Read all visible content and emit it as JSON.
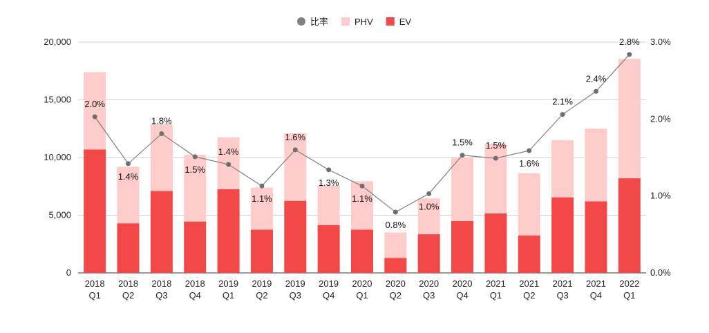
{
  "chart_data": {
    "type": "bar",
    "stacked": true,
    "title": "",
    "categories": [
      [
        "2018",
        "Q1"
      ],
      [
        "2018",
        "Q2"
      ],
      [
        "2018",
        "Q3"
      ],
      [
        "2018",
        "Q4"
      ],
      [
        "2019",
        "Q1"
      ],
      [
        "2019",
        "Q2"
      ],
      [
        "2019",
        "Q3"
      ],
      [
        "2019",
        "Q4"
      ],
      [
        "2020",
        "Q1"
      ],
      [
        "2020",
        "Q2"
      ],
      [
        "2020",
        "Q3"
      ],
      [
        "2020",
        "Q4"
      ],
      [
        "2021",
        "Q1"
      ],
      [
        "2021",
        "Q2"
      ],
      [
        "2021",
        "Q3"
      ],
      [
        "2021",
        "Q4"
      ],
      [
        "2022",
        "Q1"
      ]
    ],
    "series": [
      {
        "name": "EV",
        "color": "#f24848",
        "values": [
          10700,
          4300,
          7100,
          4450,
          7250,
          3750,
          6250,
          4150,
          3750,
          1300,
          3350,
          4500,
          5150,
          3250,
          6550,
          6200,
          8200
        ]
      },
      {
        "name": "PHV",
        "color": "#ffcccc",
        "values": [
          6700,
          4900,
          5800,
          5800,
          4500,
          3650,
          5850,
          3400,
          4200,
          2200,
          3100,
          5500,
          6050,
          5400,
          4950,
          6300,
          10350
        ]
      }
    ],
    "line_series": {
      "name": "比率",
      "color": "#808080",
      "values": [
        2.03,
        1.42,
        1.81,
        1.51,
        1.41,
        1.13,
        1.6,
        1.34,
        1.13,
        0.79,
        1.03,
        1.53,
        1.49,
        1.59,
        2.06,
        2.36,
        2.84
      ],
      "labels": [
        "2.0%",
        "1.4%",
        "1.8%",
        "1.5%",
        "1.4%",
        "1.1%",
        "1.6%",
        "1.3%",
        "1.1%",
        "0.8%",
        "1.0%",
        "1.5%",
        "1.5%",
        "1.6%",
        "2.1%",
        "2.4%",
        "2.8%"
      ],
      "label_position": [
        "above",
        "below",
        "above",
        "below",
        "above",
        "below",
        "above",
        "below",
        "below",
        "below",
        "below",
        "above",
        "above",
        "below",
        "above",
        "above",
        "above"
      ]
    },
    "y_left": {
      "min": 0,
      "max": 20000,
      "ticks": [
        "0",
        "5,000",
        "10,000",
        "15,000",
        "20,000"
      ],
      "tick_values": [
        0,
        5000,
        10000,
        15000,
        20000
      ]
    },
    "y_right": {
      "min": 0,
      "max": 3,
      "ticks": [
        "0.0%",
        "1.0%",
        "2.0%",
        "3.0%"
      ],
      "tick_values": [
        0,
        1,
        2,
        3
      ]
    },
    "legend": {
      "placement": "top-center",
      "items": [
        {
          "name": "比率",
          "marker": "circle",
          "color": "#808080"
        },
        {
          "name": "PHV",
          "marker": "square",
          "color": "#ffcccc"
        },
        {
          "name": "EV",
          "marker": "square",
          "color": "#f24848"
        }
      ]
    },
    "grid": true,
    "xlabel": "",
    "ylabel": ""
  }
}
